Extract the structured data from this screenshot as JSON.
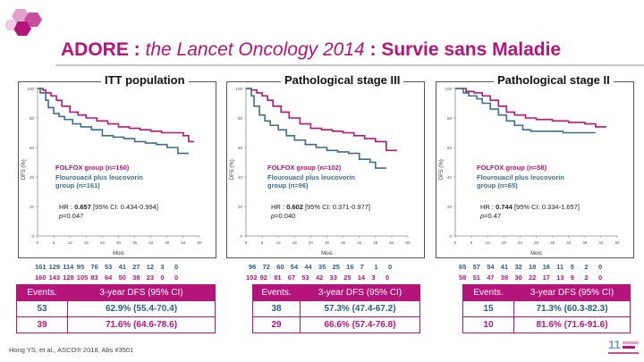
{
  "title": {
    "main": "ADORE : ",
    "italic": "the Lancet Oncology 2014",
    "tail": " : Survie sans Maladie"
  },
  "reference": "Hong YS, et al., ASCO® 2018, Abs #3501",
  "colors": {
    "folfox": "#b5157a",
    "flu": "#3c6e8f",
    "accent": "#b5157a"
  },
  "icons": [
    "hexagon-logo-icon",
    "highlights-logo-icon"
  ],
  "panels": [
    {
      "title": "ITT population",
      "ylabel": "DFS (%)",
      "xlabel": "Mois",
      "legend_folfox": "FOLFOX group (n=160)",
      "legend_flu": "Flourouacil plus leucovorin group (n=161)",
      "hr_label": "HR : ",
      "hr_value": "0.657",
      "hr_ci": " [95% CI: 0.434-0.994]",
      "p_label": "p",
      "p_value": "=0.047",
      "risk_flu": [
        "161",
        "129",
        "114",
        "95",
        "76",
        "53",
        "41",
        "27",
        "12",
        "3",
        "0"
      ],
      "risk_folfox": [
        "160",
        "143",
        "128",
        "105",
        "83",
        "64",
        "50",
        "38",
        "23",
        "0",
        "0"
      ],
      "table": {
        "h1": "Events.",
        "h2": "3-year DFS (95% CI)",
        "rows": [
          {
            "events": "53",
            "dfs": "62.9% (55.4-70.4)"
          },
          {
            "events": "39",
            "dfs": "71.6% (64.6-78.6)"
          }
        ]
      }
    },
    {
      "title": "Pathological stage III",
      "ylabel": "DFS (%)",
      "xlabel": "Mois",
      "legend_folfox": "FOLFOX group (n=102)",
      "legend_flu": "Flourouacil plus leucovorin group (n=96)",
      "hr_label": "HR : ",
      "hr_value": "0.602",
      "hr_ci": " [95% CI: 0.371-0.977]",
      "p_label": "p",
      "p_value": "=0.040",
      "risk_flu": [
        "96",
        "72",
        "60",
        "54",
        "44",
        "35",
        "25",
        "16",
        "7",
        "1",
        "0"
      ],
      "risk_folfox": [
        "102",
        "92",
        "81",
        "67",
        "53",
        "42",
        "33",
        "25",
        "14",
        "3",
        "0"
      ],
      "table": {
        "h1": "Events.",
        "h2": "3-year DFS (95% CI)",
        "rows": [
          {
            "events": "38",
            "dfs": "57.3% (47.4-67.2)"
          },
          {
            "events": "29",
            "dfs": "66.6% (57.4-76.8)"
          }
        ]
      }
    },
    {
      "title": "Pathological stage II",
      "ylabel": "DFS (%)",
      "xlabel": "Mois",
      "legend_folfox": "FOLFOX group (n=58)",
      "legend_flu": "Flourouacil plus leucovorin group (n=65)",
      "hr_label": "HR : ",
      "hr_value": "0.744",
      "hr_ci": " [95% CI: 0.334-1.657]",
      "p_label": "p",
      "p_value": "=0.47",
      "risk_flu": [
        "65",
        "57",
        "54",
        "41",
        "32",
        "18",
        "16",
        "11",
        "5",
        "2",
        "0"
      ],
      "risk_folfox": [
        "58",
        "51",
        "47",
        "38",
        "30",
        "22",
        "17",
        "13",
        "9",
        "2",
        "0"
      ],
      "table": {
        "h1": "Events.",
        "h2": "3-year DFS (95% CI)",
        "rows": [
          {
            "events": "15",
            "dfs": "71.3% (60.3-82.3)"
          },
          {
            "events": "10",
            "dfs": "81.6% (71.6-91.6)"
          }
        ]
      }
    }
  ],
  "chart_data": [
    {
      "type": "line",
      "title": "ITT population",
      "xlabel": "Mois",
      "ylabel": "DFS (%)",
      "xlim": [
        0,
        60
      ],
      "ylim": [
        0,
        100
      ],
      "xticks": [
        0,
        6,
        12,
        18,
        24,
        30,
        36,
        42,
        48,
        54,
        60
      ],
      "yticks": [
        0,
        20,
        40,
        60,
        80,
        100
      ],
      "series": [
        {
          "name": "FOLFOX group (n=160)",
          "color": "#b5157a",
          "x": [
            0,
            2,
            3,
            5,
            7,
            9,
            12,
            15,
            18,
            22,
            26,
            30,
            34,
            38,
            42,
            46,
            50,
            54,
            56,
            58
          ],
          "y": [
            100,
            99,
            97,
            95,
            92,
            88,
            84,
            82,
            80,
            78,
            76,
            74,
            73,
            72,
            71,
            70,
            70,
            68,
            64,
            64
          ]
        },
        {
          "name": "Flourouacil plus leucovorin group (n=161)",
          "color": "#3c6e8f",
          "x": [
            0,
            1,
            3,
            4,
            6,
            8,
            10,
            13,
            16,
            20,
            24,
            28,
            32,
            36,
            40,
            44,
            48,
            52,
            56
          ],
          "y": [
            100,
            97,
            92,
            87,
            83,
            81,
            79,
            76,
            74,
            72,
            68,
            67,
            66,
            64,
            63,
            62,
            60,
            56,
            56
          ]
        }
      ]
    },
    {
      "type": "line",
      "title": "Pathological stage III",
      "xlabel": "Mois",
      "ylabel": "DFS (%)",
      "xlim": [
        0,
        60
      ],
      "ylim": [
        0,
        100
      ],
      "xticks": [
        0,
        6,
        12,
        18,
        24,
        30,
        36,
        42,
        48,
        54,
        60
      ],
      "yticks": [
        0,
        20,
        40,
        60,
        80,
        100
      ],
      "series": [
        {
          "name": "FOLFOX group (n=102)",
          "color": "#b5157a",
          "x": [
            0,
            2,
            4,
            6,
            8,
            10,
            13,
            16,
            20,
            24,
            28,
            32,
            36,
            40,
            44,
            48,
            50,
            52,
            56
          ],
          "y": [
            100,
            99,
            97,
            95,
            92,
            88,
            84,
            80,
            76,
            73,
            72,
            71,
            70,
            68,
            66,
            64,
            64,
            58,
            58
          ]
        },
        {
          "name": "Flourouacil plus leucovorin group (n=96)",
          "color": "#3c6e8f",
          "x": [
            0,
            2,
            3,
            5,
            7,
            9,
            12,
            15,
            18,
            22,
            26,
            30,
            34,
            38,
            42,
            46,
            48,
            52
          ],
          "y": [
            100,
            95,
            88,
            82,
            78,
            75,
            72,
            68,
            65,
            62,
            60,
            58,
            57,
            56,
            52,
            50,
            46,
            46
          ]
        }
      ]
    },
    {
      "type": "line",
      "title": "Pathological stage II",
      "xlabel": "Mois",
      "ylabel": "DFS (%)",
      "xlim": [
        0,
        60
      ],
      "ylim": [
        0,
        100
      ],
      "xticks": [
        0,
        6,
        12,
        18,
        24,
        30,
        36,
        42,
        48,
        54,
        60
      ],
      "yticks": [
        0,
        20,
        40,
        60,
        80,
        100
      ],
      "series": [
        {
          "name": "FOLFOX group (n=58)",
          "color": "#b5157a",
          "x": [
            0,
            4,
            7,
            10,
            13,
            16,
            19,
            22,
            26,
            30,
            36,
            42,
            48,
            52,
            56
          ],
          "y": [
            100,
            98,
            97,
            95,
            92,
            88,
            84,
            82,
            80,
            79,
            78,
            77,
            76,
            74,
            74
          ]
        },
        {
          "name": "Flourouacil plus leucovorin group (n=65)",
          "color": "#3c6e8f",
          "x": [
            0,
            3,
            5,
            8,
            10,
            13,
            16,
            19,
            22,
            25,
            28,
            34,
            40,
            45,
            52
          ],
          "y": [
            100,
            97,
            95,
            93,
            90,
            86,
            82,
            78,
            75,
            72,
            71,
            71,
            70,
            70,
            70
          ]
        }
      ]
    }
  ]
}
